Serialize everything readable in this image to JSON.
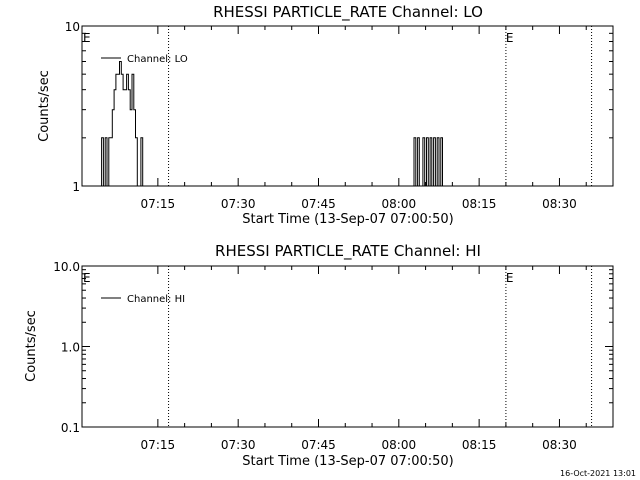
{
  "chart_data": [
    {
      "type": "line",
      "title": "RHESSI PARTICLE_RATE Channel: LO",
      "xlabel": "Start Time (13-Sep-07 07:00:50)",
      "ylabel": "Counts/sec",
      "yscale": "log",
      "ylim": [
        1,
        10
      ],
      "xlim": [
        "07:00:50",
        "08:40:00"
      ],
      "y_ticks": [
        {
          "value": 1,
          "label": "1"
        },
        {
          "value": 10,
          "label": "10"
        }
      ],
      "x_ticks": [
        {
          "value": "07:15",
          "label": "07:15"
        },
        {
          "value": "07:30",
          "label": "07:30"
        },
        {
          "value": "07:45",
          "label": "07:45"
        },
        {
          "value": "08:00",
          "label": "08:00"
        },
        {
          "value": "08:15",
          "label": "08:15"
        },
        {
          "value": "08:30",
          "label": "08:30"
        }
      ],
      "legend": {
        "entry": "Channel: LO",
        "position": "top-left"
      },
      "markers": [
        {
          "time": "07:01",
          "label": "E"
        },
        {
          "time": "08:20",
          "label": "E"
        }
      ],
      "vlines": [
        "07:17",
        "08:20",
        "08:36"
      ],
      "series": [
        {
          "name": "Channel: LO",
          "x": [
            "07:04:10",
            "07:04:30",
            "07:04:50",
            "07:05:10",
            "07:05:30",
            "07:05:50",
            "07:06:10",
            "07:06:30",
            "07:06:50",
            "07:07:10",
            "07:07:30",
            "07:07:50",
            "07:08:10",
            "07:08:30",
            "07:08:50",
            "07:09:10",
            "07:09:30",
            "07:09:50",
            "07:10:10",
            "07:10:30",
            "07:10:50",
            "07:11:10",
            "07:11:30",
            "07:11:50",
            "07:12:10",
            "07:12:30",
            "08:02:30",
            "08:02:50",
            "08:03:10",
            "08:03:30",
            "08:03:50",
            "08:04:10",
            "08:04:30",
            "08:04:50",
            "08:05:10",
            "08:05:30",
            "08:05:50",
            "08:06:10",
            "08:06:30",
            "08:06:50",
            "08:07:10",
            "08:07:30",
            "08:07:50",
            "08:08:10"
          ],
          "values": [
            1,
            2,
            1,
            2,
            1,
            2,
            2,
            3,
            4,
            5,
            5,
            6,
            5,
            4,
            4,
            5,
            4,
            3,
            5,
            3,
            2,
            1,
            1,
            2,
            1,
            1,
            1,
            2,
            1,
            2,
            1,
            1,
            2,
            1,
            2,
            1,
            2,
            1,
            2,
            1,
            2,
            1,
            2,
            1
          ]
        }
      ]
    },
    {
      "type": "line",
      "title": "RHESSI PARTICLE_RATE Channel: HI",
      "xlabel": "Start Time (13-Sep-07 07:00:50)",
      "ylabel": "Counts/sec",
      "yscale": "log",
      "ylim": [
        0.1,
        10
      ],
      "xlim": [
        "07:00:50",
        "08:40:00"
      ],
      "y_ticks": [
        {
          "value": 0.1,
          "label": "0.1"
        },
        {
          "value": 1,
          "label": "1.0"
        },
        {
          "value": 10,
          "label": "10.0"
        }
      ],
      "x_ticks": [
        {
          "value": "07:15",
          "label": "07:15"
        },
        {
          "value": "07:30",
          "label": "07:30"
        },
        {
          "value": "07:45",
          "label": "07:45"
        },
        {
          "value": "08:00",
          "label": "08:00"
        },
        {
          "value": "08:15",
          "label": "08:15"
        },
        {
          "value": "08:30",
          "label": "08:30"
        }
      ],
      "legend": {
        "entry": "Channel: HI",
        "position": "top-left"
      },
      "markers": [
        {
          "time": "07:01",
          "label": "E"
        },
        {
          "time": "08:20",
          "label": "E"
        }
      ],
      "vlines": [
        "07:17",
        "08:20",
        "08:36"
      ],
      "series": [
        {
          "name": "Channel: HI",
          "x": [],
          "values": []
        }
      ]
    }
  ],
  "footer": {
    "timestamp": "16-Oct-2021 13:01"
  }
}
